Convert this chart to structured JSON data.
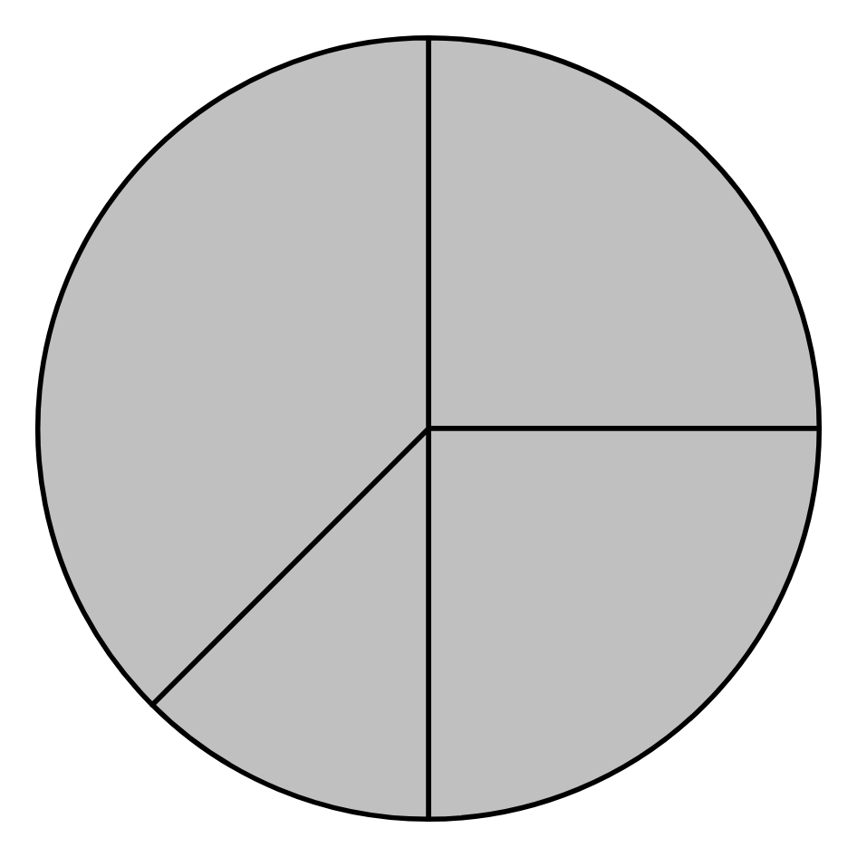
{
  "chart_data": {
    "type": "pie",
    "categories": [
      null,
      null,
      null,
      null
    ],
    "values": [
      25,
      25,
      12.5,
      37.5
    ],
    "colors": [
      "#c0c0c0",
      "#c0c0c0",
      "#c0c0c0",
      "#c0c0c0"
    ],
    "legend": false
  }
}
